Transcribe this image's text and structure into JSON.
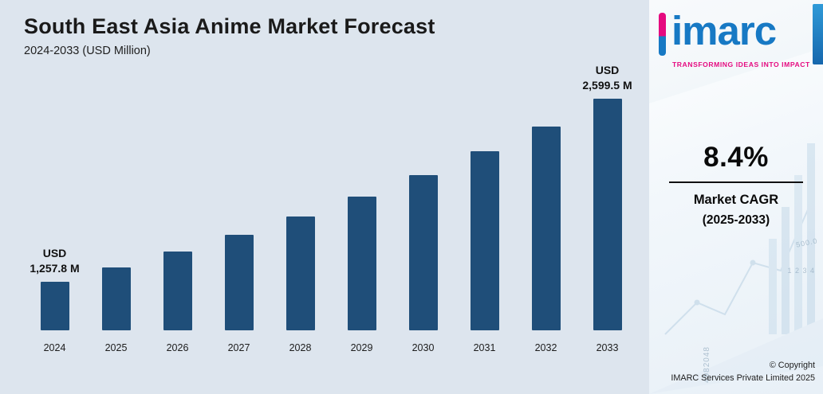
{
  "header": {
    "title": "South East Asia Anime Market Forecast",
    "subtitle": "2024-2033 (USD Million)"
  },
  "chart_data": {
    "type": "bar",
    "title": "South East Asia Anime Market Forecast",
    "subtitle": "2024-2033 (USD Million)",
    "unit": "USD Million",
    "categories": [
      "2024",
      "2025",
      "2026",
      "2027",
      "2028",
      "2029",
      "2030",
      "2031",
      "2032",
      "2033"
    ],
    "values": [
      1257.8,
      1363.5,
      1478.1,
      1602.3,
      1736.9,
      1882.8,
      2041.0,
      2212.5,
      2398.4,
      2599.5
    ],
    "annotations": [
      {
        "index": 0,
        "lines": [
          "USD",
          "1,257.8 M"
        ]
      },
      {
        "index": 9,
        "lines": [
          "USD",
          "2,599.5 M"
        ]
      }
    ],
    "ylim": [
      900,
      2700
    ],
    "grid": false,
    "legend": false,
    "bar_color": "#1f4e79",
    "background_color": "#dde5ee"
  },
  "brand": {
    "logo_text": "imarc",
    "tagline": "TRANSFORMING IDEAS INTO IMPACT",
    "logo_color": "#1779c4",
    "accent_color": "#e5097f"
  },
  "cagr": {
    "value": "8.4%",
    "label": "Market CAGR",
    "period": "(2025-2033)"
  },
  "footer": {
    "line1": "© Copyright",
    "line2": "IMARC Services Private Limited 2025"
  },
  "decor": {
    "numbers": [
      "4982048",
      "500.0",
      "1 2 3 4"
    ]
  }
}
